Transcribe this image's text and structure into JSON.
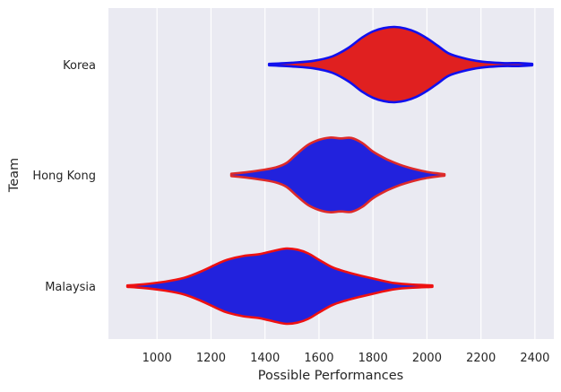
{
  "chart_data": {
    "type": "violin",
    "orientation": "horizontal",
    "title": "",
    "xlabel": "Possible Performances",
    "ylabel": "Team",
    "xlim": [
      820,
      2470
    ],
    "xticks": [
      1000,
      1200,
      1400,
      1600,
      1800,
      2000,
      2200,
      2400
    ],
    "categories": [
      "Korea",
      "Hong Kong",
      "Malaysia"
    ],
    "grid": true,
    "background": "#eaeaf2",
    "grid_color": "#ffffff",
    "series": [
      {
        "category": "Korea",
        "fill": "#e02020",
        "edge": "#1010ee",
        "range": [
          1415,
          2390
        ],
        "profile": [
          [
            1415,
            0.02
          ],
          [
            1500,
            0.05
          ],
          [
            1580,
            0.1
          ],
          [
            1650,
            0.22
          ],
          [
            1710,
            0.45
          ],
          [
            1760,
            0.72
          ],
          [
            1800,
            0.88
          ],
          [
            1840,
            0.97
          ],
          [
            1880,
            1.0
          ],
          [
            1920,
            0.96
          ],
          [
            1960,
            0.86
          ],
          [
            2000,
            0.7
          ],
          [
            2040,
            0.5
          ],
          [
            2080,
            0.3
          ],
          [
            2130,
            0.18
          ],
          [
            2200,
            0.08
          ],
          [
            2280,
            0.04
          ],
          [
            2340,
            0.04
          ],
          [
            2390,
            0.02
          ]
        ]
      },
      {
        "category": "Hong Kong",
        "fill": "#2222dd",
        "edge": "#dd2a2a",
        "range": [
          1275,
          2065
        ],
        "profile": [
          [
            1275,
            0.03
          ],
          [
            1330,
            0.07
          ],
          [
            1390,
            0.13
          ],
          [
            1440,
            0.2
          ],
          [
            1480,
            0.32
          ],
          [
            1520,
            0.57
          ],
          [
            1560,
            0.8
          ],
          [
            1600,
            0.93
          ],
          [
            1640,
            0.99
          ],
          [
            1680,
            0.97
          ],
          [
            1720,
            0.98
          ],
          [
            1760,
            0.85
          ],
          [
            1800,
            0.62
          ],
          [
            1850,
            0.42
          ],
          [
            1900,
            0.27
          ],
          [
            1950,
            0.16
          ],
          [
            2000,
            0.08
          ],
          [
            2040,
            0.04
          ],
          [
            2065,
            0.02
          ]
        ]
      },
      {
        "category": "Malaysia",
        "fill": "#2222dd",
        "edge": "#ee1111",
        "range": [
          890,
          2020
        ],
        "profile": [
          [
            890,
            0.02
          ],
          [
            950,
            0.05
          ],
          [
            1030,
            0.12
          ],
          [
            1100,
            0.22
          ],
          [
            1160,
            0.38
          ],
          [
            1220,
            0.58
          ],
          [
            1260,
            0.7
          ],
          [
            1320,
            0.8
          ],
          [
            1380,
            0.85
          ],
          [
            1440,
            0.95
          ],
          [
            1480,
            1.0
          ],
          [
            1520,
            0.97
          ],
          [
            1560,
            0.87
          ],
          [
            1600,
            0.7
          ],
          [
            1650,
            0.5
          ],
          [
            1700,
            0.38
          ],
          [
            1760,
            0.27
          ],
          [
            1820,
            0.17
          ],
          [
            1880,
            0.08
          ],
          [
            1950,
            0.04
          ],
          [
            2020,
            0.02
          ]
        ]
      }
    ]
  }
}
